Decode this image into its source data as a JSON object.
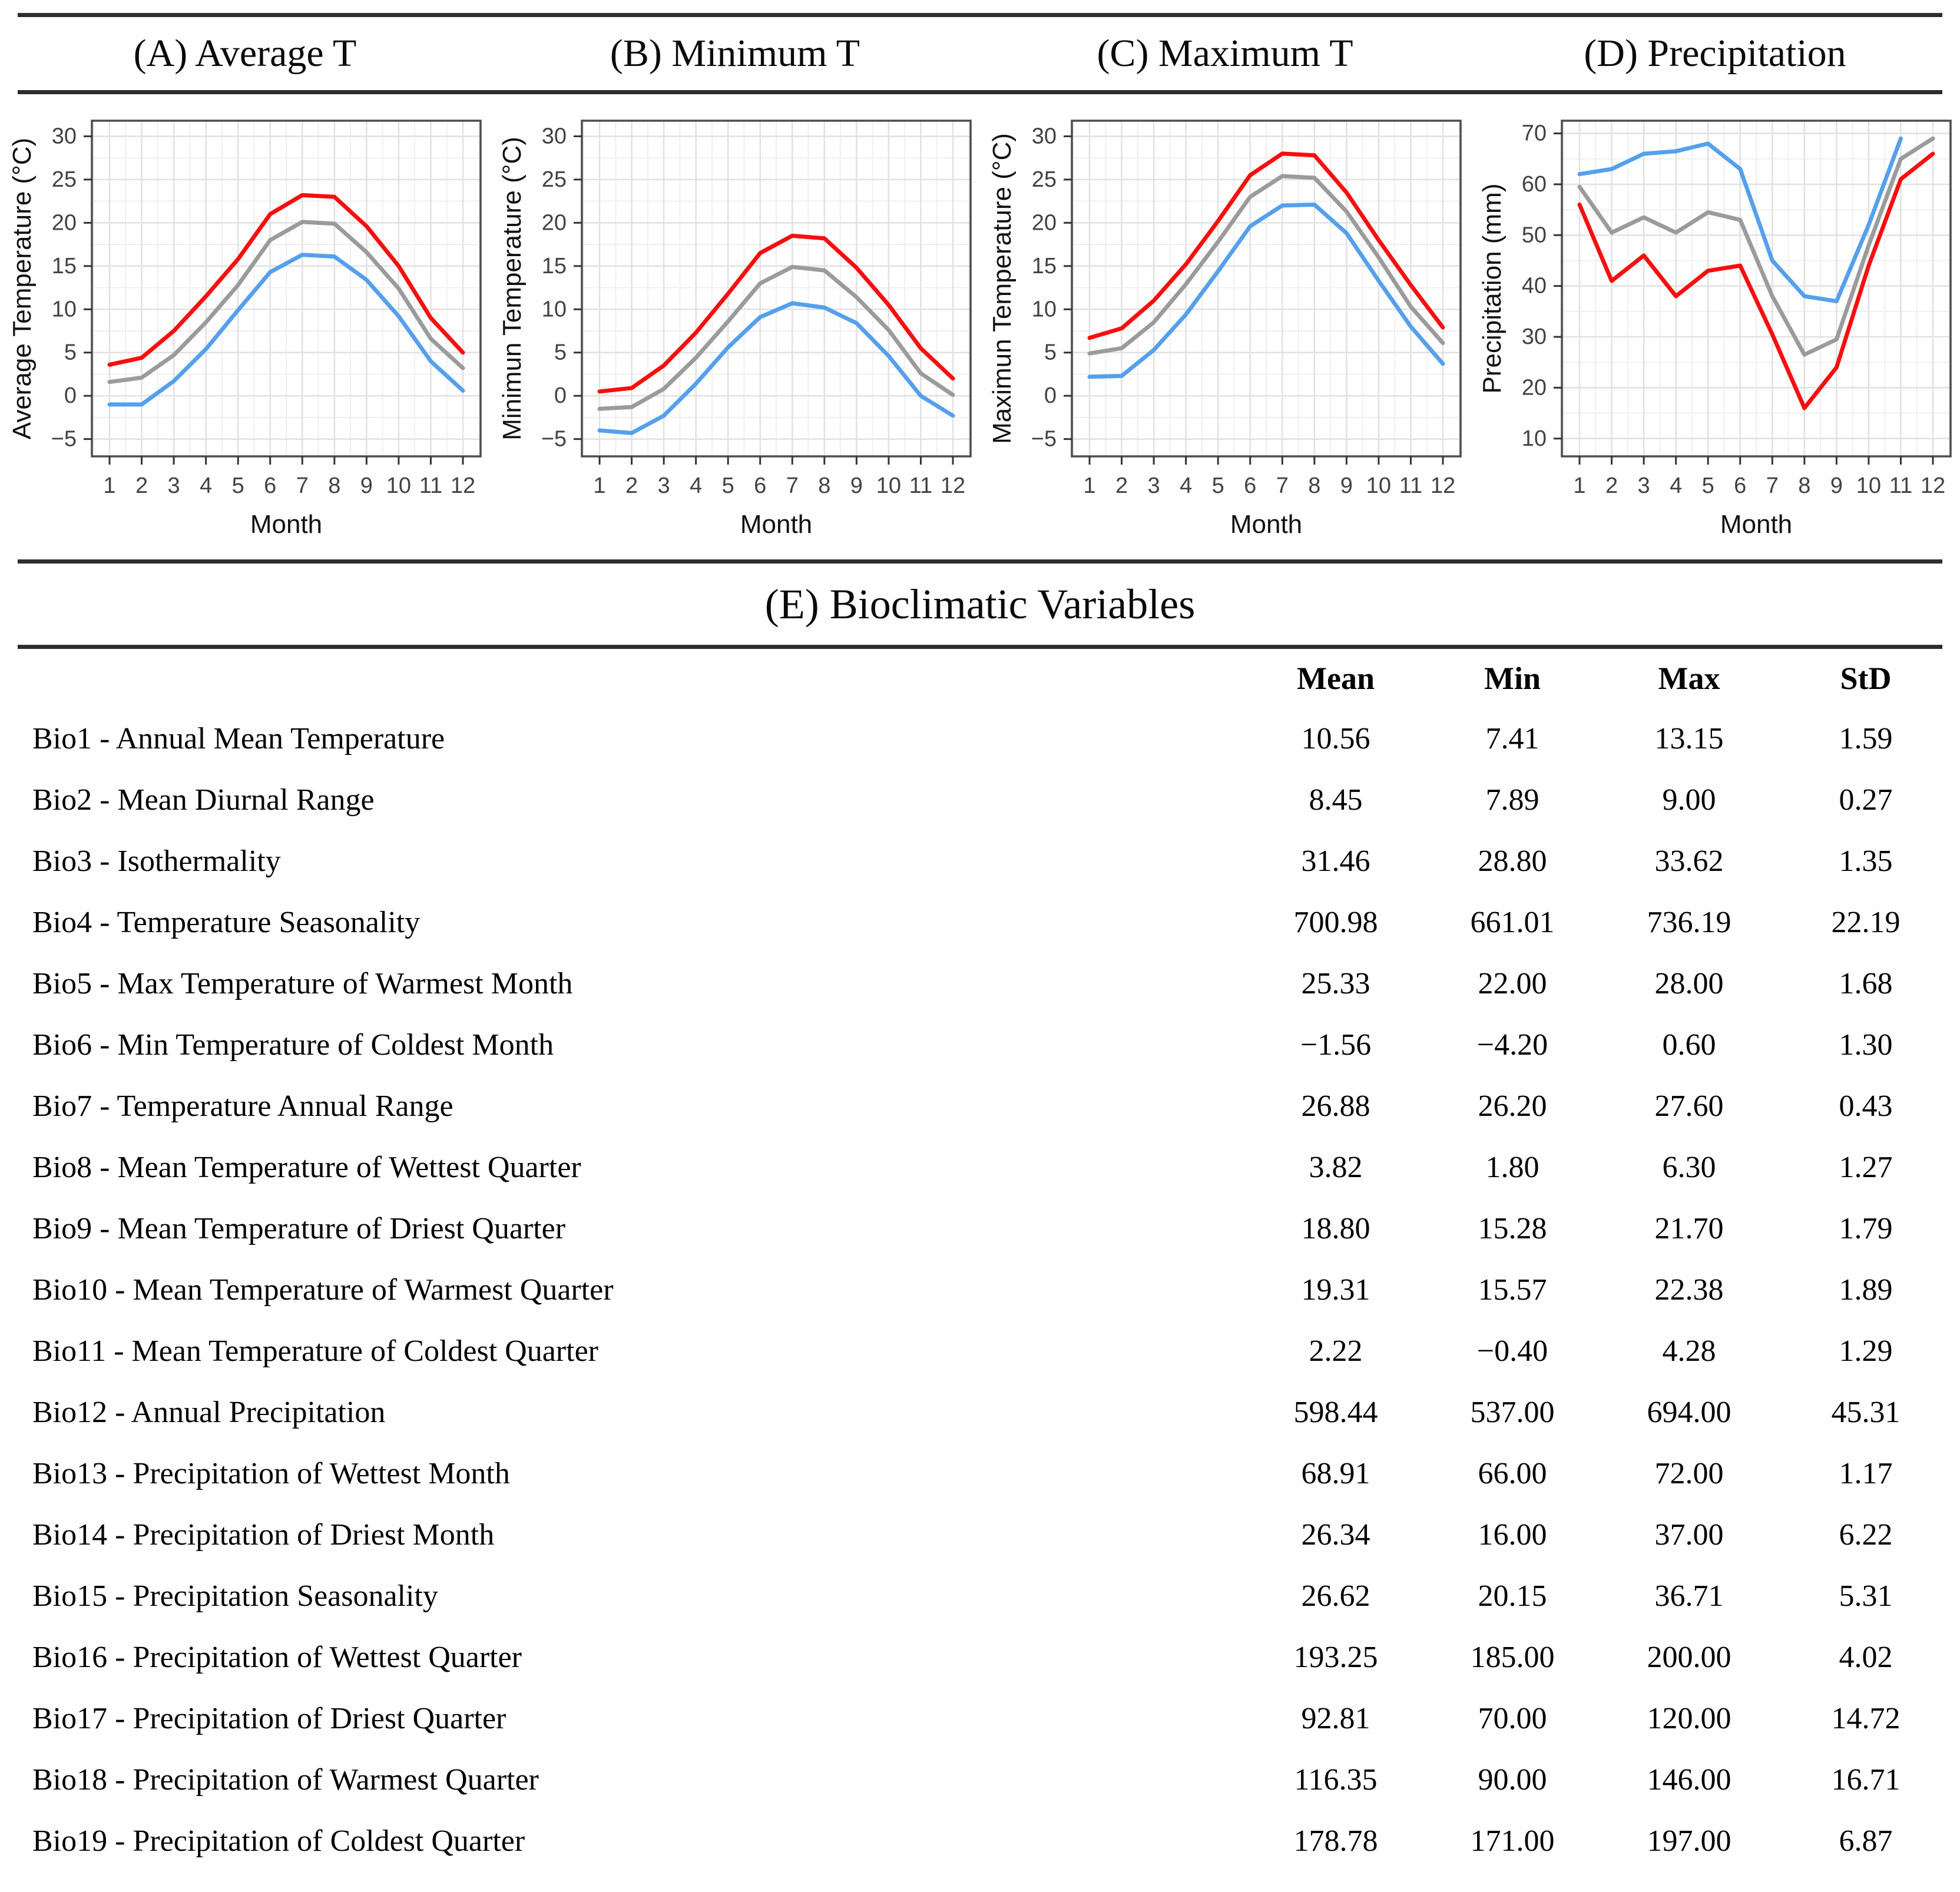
{
  "panels": [
    {
      "title": "(A) Average T"
    },
    {
      "title": "(B) Minimum T"
    },
    {
      "title": "(C) Maximum T"
    },
    {
      "title": "(D) Precipitation"
    }
  ],
  "colors": {
    "max_line_red": "#F80E0E",
    "mean_line_gray": "#9B9B9B",
    "min_line_blue": "#55A0EC"
  },
  "chart_data": [
    {
      "type": "line",
      "title": "(A) Average T",
      "xlabel": "Month",
      "ylabel": "Average Temperature (°C)",
      "x": [
        1,
        2,
        3,
        4,
        5,
        6,
        7,
        8,
        9,
        10,
        11,
        12
      ],
      "xlim": [
        0.45,
        12.55
      ],
      "ylim": [
        -7,
        31.8
      ],
      "yticks": [
        -5,
        0,
        5,
        10,
        15,
        20,
        25,
        30
      ],
      "grid": true,
      "legend": "none",
      "series": [
        {
          "name": "min",
          "color": "#55A0EC",
          "values": [
            -1.0,
            -1.0,
            1.7,
            5.4,
            9.9,
            14.3,
            16.3,
            16.1,
            13.4,
            9.2,
            4.0,
            0.6
          ]
        },
        {
          "name": "mean",
          "color": "#9B9B9B",
          "values": [
            1.6,
            2.1,
            4.7,
            8.5,
            12.8,
            18.0,
            20.1,
            19.9,
            16.6,
            12.4,
            6.6,
            3.2
          ]
        },
        {
          "name": "max",
          "color": "#F80E0E",
          "values": [
            3.6,
            4.4,
            7.5,
            11.5,
            15.8,
            21.0,
            23.2,
            23.0,
            19.6,
            15.0,
            9.0,
            5.0
          ]
        }
      ]
    },
    {
      "type": "line",
      "title": "(B) Minimum T",
      "xlabel": "Month",
      "ylabel": "Minimun Temperature (°C)",
      "x": [
        1,
        2,
        3,
        4,
        5,
        6,
        7,
        8,
        9,
        10,
        11,
        12
      ],
      "xlim": [
        0.45,
        12.55
      ],
      "ylim": [
        -7,
        31.8
      ],
      "yticks": [
        -5,
        0,
        5,
        10,
        15,
        20,
        25,
        30
      ],
      "grid": true,
      "legend": "none",
      "series": [
        {
          "name": "min",
          "color": "#55A0EC",
          "values": [
            -4.0,
            -4.3,
            -2.3,
            1.4,
            5.6,
            9.1,
            10.7,
            10.2,
            8.4,
            4.6,
            0.0,
            -2.3
          ]
        },
        {
          "name": "mean",
          "color": "#9B9B9B",
          "values": [
            -1.5,
            -1.3,
            0.8,
            4.4,
            8.6,
            13.0,
            14.9,
            14.5,
            11.4,
            7.6,
            2.6,
            0.1
          ]
        },
        {
          "name": "max",
          "color": "#F80E0E",
          "values": [
            0.5,
            0.9,
            3.5,
            7.3,
            11.8,
            16.5,
            18.5,
            18.2,
            14.8,
            10.5,
            5.5,
            2.0
          ]
        }
      ]
    },
    {
      "type": "line",
      "title": "(C) Maximum T",
      "xlabel": "Month",
      "ylabel": "Maximun Temperature (°C)",
      "x": [
        1,
        2,
        3,
        4,
        5,
        6,
        7,
        8,
        9,
        10,
        11,
        12
      ],
      "xlim": [
        0.45,
        12.55
      ],
      "ylim": [
        -7,
        31.8
      ],
      "yticks": [
        -5,
        0,
        5,
        10,
        15,
        20,
        25,
        30
      ],
      "grid": true,
      "legend": "none",
      "series": [
        {
          "name": "min",
          "color": "#55A0EC",
          "values": [
            2.2,
            2.3,
            5.3,
            9.4,
            14.4,
            19.6,
            22.0,
            22.1,
            18.8,
            13.3,
            8.0,
            3.7
          ]
        },
        {
          "name": "mean",
          "color": "#9B9B9B",
          "values": [
            4.9,
            5.5,
            8.5,
            12.9,
            17.8,
            23.0,
            25.4,
            25.2,
            21.3,
            16.0,
            10.3,
            6.1
          ]
        },
        {
          "name": "max",
          "color": "#F80E0E",
          "values": [
            6.7,
            7.8,
            11.0,
            15.2,
            20.2,
            25.5,
            28.0,
            27.8,
            23.5,
            18.0,
            12.8,
            7.9
          ]
        }
      ]
    },
    {
      "type": "line",
      "title": "(D) Precipitation",
      "xlabel": "Month",
      "ylabel": "Precipitation (mm)",
      "x": [
        1,
        2,
        3,
        4,
        5,
        6,
        7,
        8,
        9,
        10,
        11,
        12
      ],
      "xlim": [
        0.45,
        12.55
      ],
      "ylim": [
        6.5,
        72.5
      ],
      "yticks": [
        10,
        20,
        30,
        40,
        50,
        60,
        70
      ],
      "grid": true,
      "legend": "none",
      "series": [
        {
          "name": "min",
          "color": "#F80E0E",
          "values": [
            56,
            41,
            46,
            38,
            43,
            44,
            30.5,
            16,
            24,
            44,
            61,
            66
          ]
        },
        {
          "name": "mean",
          "color": "#9B9B9B",
          "values": [
            59.5,
            50.5,
            53.5,
            50.5,
            54.5,
            53,
            38,
            26.5,
            29.5,
            48,
            65,
            69
          ]
        },
        {
          "name": "max",
          "color": "#55A0EC",
          "values": [
            62,
            63,
            66,
            66.5,
            68,
            63,
            45,
            38,
            37,
            52,
            69,
            null
          ]
        }
      ]
    }
  ],
  "table": {
    "section_title": "(E) Bioclimatic Variables",
    "columns": [
      "Mean",
      "Min",
      "Max",
      "StD"
    ],
    "rows": [
      {
        "label": "Bio1 - Annual Mean Temperature",
        "mean": "10.56",
        "min": "7.41",
        "max": "13.15",
        "std": "1.59"
      },
      {
        "label": "Bio2 - Mean Diurnal Range",
        "mean": "8.45",
        "min": "7.89",
        "max": "9.00",
        "std": "0.27"
      },
      {
        "label": "Bio3 - Isothermality",
        "mean": "31.46",
        "min": "28.80",
        "max": "33.62",
        "std": "1.35"
      },
      {
        "label": "Bio4 - Temperature Seasonality",
        "mean": "700.98",
        "min": "661.01",
        "max": "736.19",
        "std": "22.19"
      },
      {
        "label": "Bio5 - Max Temperature of Warmest Month",
        "mean": "25.33",
        "min": "22.00",
        "max": "28.00",
        "std": "1.68"
      },
      {
        "label": "Bio6 - Min Temperature of Coldest Month",
        "mean": "−1.56",
        "min": "−4.20",
        "max": "0.60",
        "std": "1.30"
      },
      {
        "label": "Bio7 - Temperature Annual Range",
        "mean": "26.88",
        "min": "26.20",
        "max": "27.60",
        "std": "0.43"
      },
      {
        "label": "Bio8 - Mean Temperature of Wettest Quarter",
        "mean": "3.82",
        "min": "1.80",
        "max": "6.30",
        "std": "1.27"
      },
      {
        "label": "Bio9 - Mean Temperature of Driest Quarter",
        "mean": "18.80",
        "min": "15.28",
        "max": "21.70",
        "std": "1.79"
      },
      {
        "label": "Bio10 - Mean Temperature of Warmest Quarter",
        "mean": "19.31",
        "min": "15.57",
        "max": "22.38",
        "std": "1.89"
      },
      {
        "label": "Bio11 - Mean Temperature of Coldest Quarter",
        "mean": "2.22",
        "min": "−0.40",
        "max": "4.28",
        "std": "1.29"
      },
      {
        "label": "Bio12 - Annual Precipitation",
        "mean": "598.44",
        "min": "537.00",
        "max": "694.00",
        "std": "45.31"
      },
      {
        "label": "Bio13 - Precipitation of Wettest Month",
        "mean": "68.91",
        "min": "66.00",
        "max": "72.00",
        "std": "1.17"
      },
      {
        "label": "Bio14 - Precipitation of Driest Month",
        "mean": "26.34",
        "min": "16.00",
        "max": "37.00",
        "std": "6.22"
      },
      {
        "label": "Bio15 - Precipitation Seasonality",
        "mean": "26.62",
        "min": "20.15",
        "max": "36.71",
        "std": "5.31"
      },
      {
        "label": "Bio16 - Precipitation of Wettest Quarter",
        "mean": "193.25",
        "min": "185.00",
        "max": "200.00",
        "std": "4.02"
      },
      {
        "label": "Bio17 - Precipitation of Driest Quarter",
        "mean": "92.81",
        "min": "70.00",
        "max": "120.00",
        "std": "14.72"
      },
      {
        "label": "Bio18 - Precipitation of Warmest Quarter",
        "mean": "116.35",
        "min": "90.00",
        "max": "146.00",
        "std": "16.71"
      },
      {
        "label": "Bio19 - Precipitation of Coldest Quarter",
        "mean": "178.78",
        "min": "171.00",
        "max": "197.00",
        "std": "6.87"
      }
    ]
  }
}
